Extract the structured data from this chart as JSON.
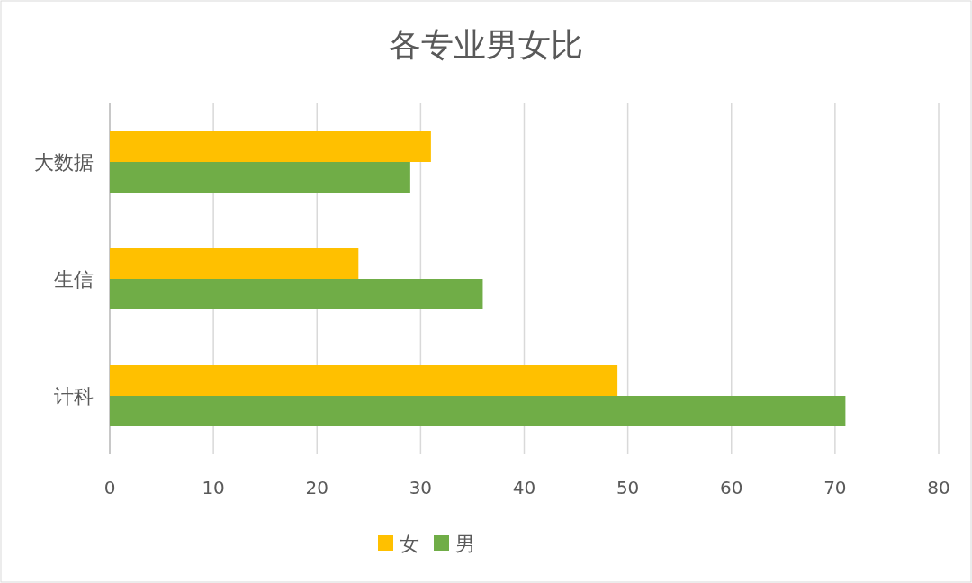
{
  "chart_data": {
    "type": "bar",
    "orientation": "horizontal",
    "title": "各专业男女比",
    "categories": [
      "大数据",
      "生信",
      "计科"
    ],
    "series": [
      {
        "name": "女",
        "color": "#ffc000",
        "values": [
          31,
          24,
          49
        ]
      },
      {
        "name": "男",
        "color": "#70ad47",
        "values": [
          29,
          36,
          71
        ]
      }
    ],
    "xlim": [
      0,
      80
    ],
    "xticks": [
      0,
      10,
      20,
      30,
      40,
      50,
      60,
      70,
      80
    ],
    "grid": "x",
    "legend": "bottom"
  }
}
